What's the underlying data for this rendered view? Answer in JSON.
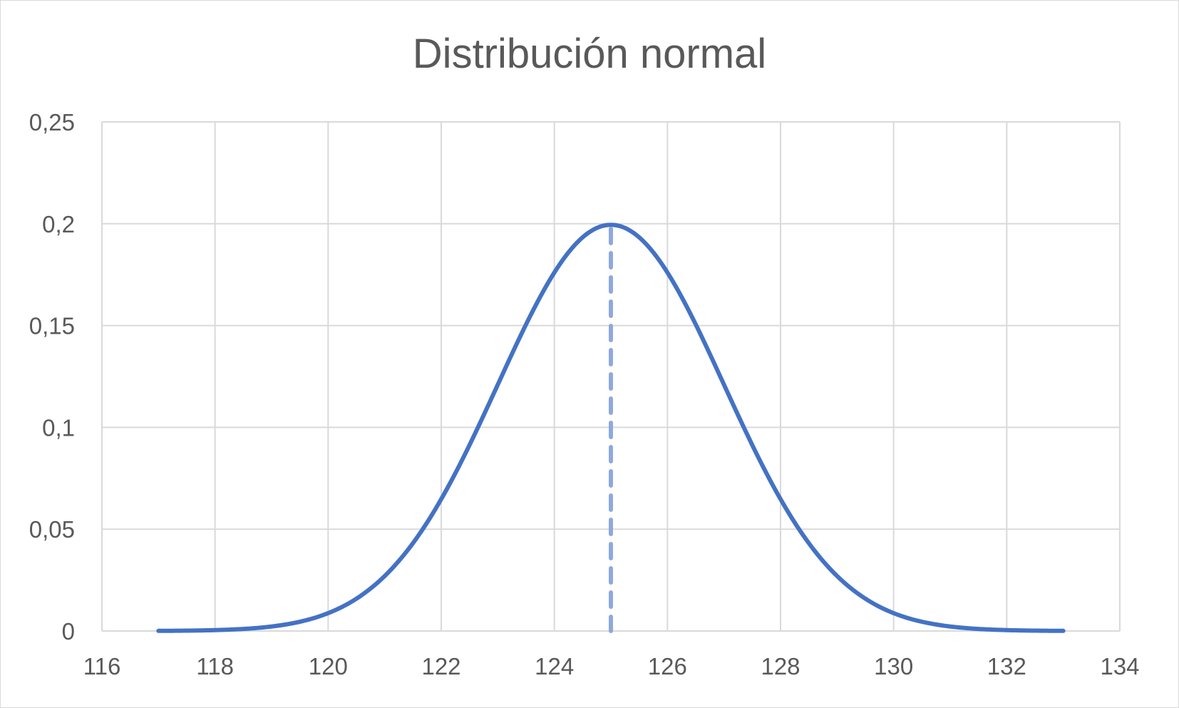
{
  "chart_data": {
    "type": "line",
    "title": "Distribución normal",
    "xlabel": "",
    "ylabel": "",
    "xlim": [
      116,
      134
    ],
    "ylim": [
      0,
      0.25
    ],
    "x_ticks": [
      116,
      118,
      120,
      122,
      124,
      126,
      128,
      130,
      132,
      134
    ],
    "x_tick_labels": [
      "116",
      "118",
      "120",
      "122",
      "124",
      "126",
      "128",
      "130",
      "132",
      "134"
    ],
    "y_ticks": [
      0,
      0.05,
      0.1,
      0.15,
      0.2,
      0.25
    ],
    "y_tick_labels": [
      "0",
      "0,05",
      "0,1",
      "0,15",
      "0,2",
      "0,25"
    ],
    "grid": true,
    "legend": "none",
    "series": [
      {
        "mean": 125,
        "std_dev": 2,
        "x_range": [
          117,
          133
        ],
        "color": "#4472C4"
      }
    ],
    "reference_lines": [
      {
        "type": "vertical",
        "x": 125,
        "y_range": [
          0,
          0.1995
        ],
        "style": "dashed",
        "color": "#8EA9DB"
      }
    ],
    "colors": {
      "grid": "#d9d9d9",
      "text": "#595959",
      "curve": "#4472C4",
      "reference": "#8EA9DB"
    }
  }
}
